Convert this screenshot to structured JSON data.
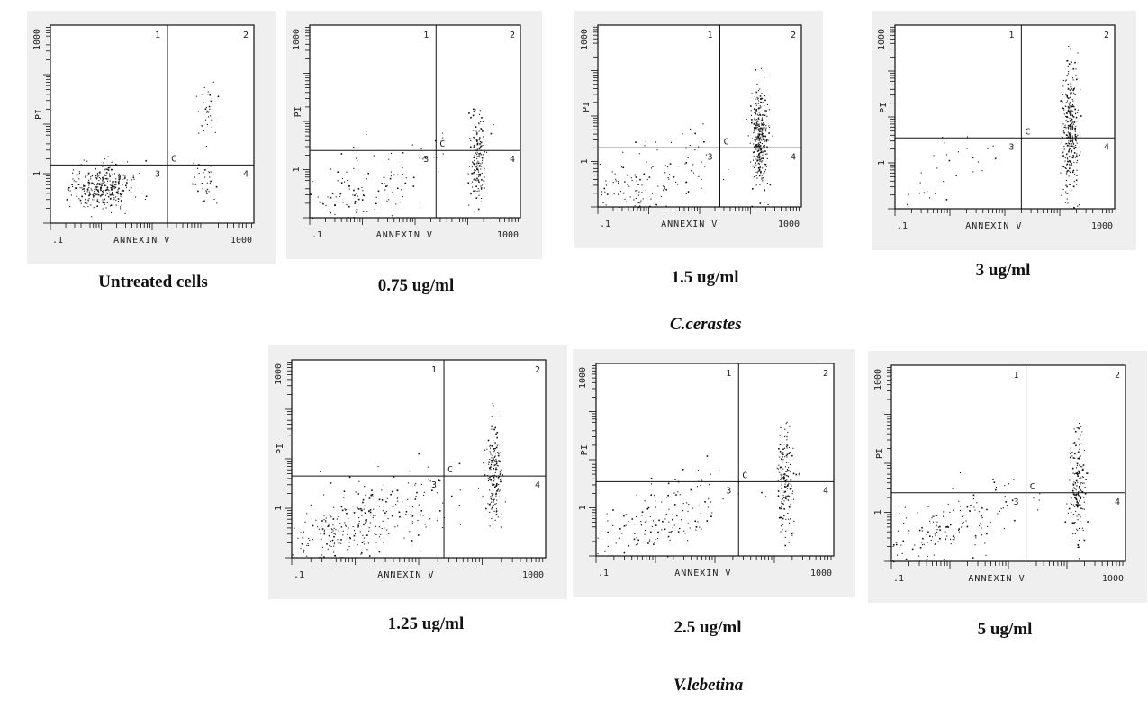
{
  "chart_data": [
    {
      "type": "scatter",
      "title": "Untreated cells",
      "xlabel": "ANNEXIN V",
      "ylabel": "PI",
      "xscale": "log",
      "yscale": "log",
      "xlim": [
        0.1,
        1000
      ],
      "ylim": [
        0.1,
        1000
      ],
      "x_ticks": [
        ".1",
        "1000"
      ],
      "y_ticks": [
        "1",
        "1000"
      ],
      "quadrant_labels": [
        "1",
        "2",
        "3",
        "4"
      ],
      "gate_label": "C",
      "gate": {
        "x": 20,
        "y": 1.5
      },
      "clusters": [
        {
          "x": 1.0,
          "y": 0.55,
          "spread_x": 0.32,
          "spread_y": 0.22,
          "density": "high"
        },
        {
          "x": 120,
          "y": 20,
          "spread_x": 0.12,
          "spread_y": 0.28,
          "density": "low"
        },
        {
          "x": 110,
          "y": 0.6,
          "spread_x": 0.1,
          "spread_y": 0.2,
          "density": "low"
        }
      ]
    },
    {
      "type": "scatter",
      "title": "0.75 ug/ml",
      "xlabel": "ANNEXIN V",
      "ylabel": "PI",
      "xscale": "log",
      "yscale": "log",
      "xlim": [
        0.1,
        1000
      ],
      "ylim": [
        0.1,
        1000
      ],
      "x_ticks": [
        ".1",
        "1000"
      ],
      "y_ticks": [
        "1",
        "1000"
      ],
      "quadrant_labels": [
        "1",
        "2",
        "3",
        "4"
      ],
      "gate_label": "C",
      "gate": {
        "x": 25,
        "y": 2.5
      },
      "clusters": [
        {
          "x": 0.6,
          "y": 0.25,
          "spread_x": 0.5,
          "spread_y": 0.3,
          "density": "medium",
          "diagonal": true
        },
        {
          "x": 150,
          "y": 1.5,
          "spread_x": 0.08,
          "spread_y": 0.5,
          "density": "medium"
        }
      ]
    },
    {
      "type": "scatter",
      "title": "1.5 ug/ml",
      "xlabel": "ANNEXIN V",
      "ylabel": "PI",
      "xscale": "log",
      "yscale": "log",
      "xlim": [
        0.1,
        1000
      ],
      "ylim": [
        0.1,
        1000
      ],
      "x_ticks": [
        ".1",
        "1000"
      ],
      "y_ticks": [
        "1",
        "1000"
      ],
      "quadrant_labels": [
        "1",
        "2",
        "3",
        "4"
      ],
      "gate_label": "C",
      "gate": {
        "x": 25,
        "y": 2.0
      },
      "clusters": [
        {
          "x": 0.7,
          "y": 0.3,
          "spread_x": 0.5,
          "spread_y": 0.35,
          "density": "medium",
          "diagonal": true
        },
        {
          "x": 150,
          "y": 3,
          "spread_x": 0.08,
          "spread_y": 0.55,
          "density": "high"
        }
      ]
    },
    {
      "type": "scatter",
      "title": "3 ug/ml",
      "xlabel": "ANNEXIN V",
      "ylabel": "PI",
      "xscale": "log",
      "yscale": "log",
      "xlim": [
        0.1,
        1000
      ],
      "ylim": [
        0.1,
        1000
      ],
      "x_ticks": [
        ".1",
        "1000"
      ],
      "y_ticks": [
        "1",
        "1000"
      ],
      "quadrant_labels": [
        "1",
        "2",
        "3",
        "4"
      ],
      "gate_label": "C",
      "gate": {
        "x": 20,
        "y": 3.5
      },
      "clusters": [
        {
          "x": 0.6,
          "y": 0.4,
          "spread_x": 0.45,
          "spread_y": 0.35,
          "density": "low",
          "diagonal": true
        },
        {
          "x": 150,
          "y": 5,
          "spread_x": 0.08,
          "spread_y": 0.75,
          "density": "high"
        }
      ]
    },
    {
      "type": "scatter",
      "title": "1.25 ug/ml",
      "xlabel": "ANNEXIN V",
      "ylabel": "PI",
      "xscale": "log",
      "yscale": "log",
      "xlim": [
        0.1,
        1000
      ],
      "ylim": [
        0.1,
        1000
      ],
      "x_ticks": [
        ".1",
        "1000"
      ],
      "y_ticks": [
        "1",
        "1000"
      ],
      "quadrant_labels": [
        "1",
        "2",
        "3",
        "4"
      ],
      "gate_label": "C",
      "gate": {
        "x": 25,
        "y": 4.5
      },
      "clusters": [
        {
          "x": 1.0,
          "y": 0.5,
          "spread_x": 0.4,
          "spread_y": 0.3,
          "density": "high",
          "diagonal": true
        },
        {
          "x": 150,
          "y": 5,
          "spread_x": 0.07,
          "spread_y": 0.5,
          "density": "medium"
        }
      ]
    },
    {
      "type": "scatter",
      "title": "2.5 ug/ml",
      "xlabel": "ANNEXIN V",
      "ylabel": "PI",
      "xscale": "log",
      "yscale": "log",
      "xlim": [
        0.1,
        1000
      ],
      "ylim": [
        0.1,
        1000
      ],
      "x_ticks": [
        ".1",
        "1000"
      ],
      "y_ticks": [
        "1",
        "1000"
      ],
      "quadrant_labels": [
        "1",
        "2",
        "3",
        "4"
      ],
      "gate_label": "C",
      "gate": {
        "x": 25,
        "y": 3.5
      },
      "clusters": [
        {
          "x": 1.0,
          "y": 0.5,
          "spread_x": 0.4,
          "spread_y": 0.3,
          "density": "medium",
          "diagonal": true
        },
        {
          "x": 150,
          "y": 4,
          "spread_x": 0.07,
          "spread_y": 0.55,
          "density": "medium"
        }
      ]
    },
    {
      "type": "scatter",
      "title": "5  ug/ml",
      "xlabel": "ANNEXIN V",
      "ylabel": "PI",
      "xscale": "log",
      "yscale": "log",
      "xlim": [
        0.1,
        1000
      ],
      "ylim": [
        0.1,
        1000
      ],
      "x_ticks": [
        ".1",
        "1000"
      ],
      "y_ticks": [
        "1",
        "1000"
      ],
      "quadrant_labels": [
        "1",
        "2",
        "3",
        "4"
      ],
      "gate_label": "C",
      "gate": {
        "x": 20,
        "y": 2.5
      },
      "clusters": [
        {
          "x": 0.8,
          "y": 0.45,
          "spread_x": 0.4,
          "spread_y": 0.3,
          "density": "medium",
          "diagonal": true
        },
        {
          "x": 150,
          "y": 3,
          "spread_x": 0.07,
          "spread_y": 0.6,
          "density": "medium"
        }
      ]
    }
  ],
  "captions": {
    "untreated": "Untreated cells",
    "c1": "0.75 ug/ml",
    "c2": "1.5 ug/ml",
    "c3": "3 ug/ml",
    "v1": "1.25 ug/ml",
    "v2": "2.5 ug/ml",
    "v3": "5  ug/ml"
  },
  "species": {
    "top": "C.cerastes",
    "bottom": "V.lebetina"
  },
  "colors": {
    "panel_background": "#efefef",
    "plot_background": "#ffffff",
    "ink": "#111111"
  }
}
